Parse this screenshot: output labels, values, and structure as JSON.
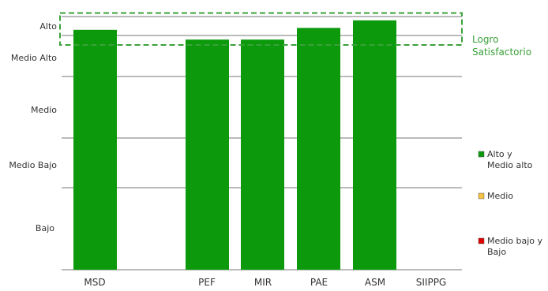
{
  "chart_data": {
    "type": "bar",
    "categories": [
      "MSD",
      "PEF",
      "MIR",
      "PAE",
      "ASM",
      "SIIPPG"
    ],
    "levels": [
      "Alto",
      "Medio  Alto",
      "Medio",
      "Medio Bajo",
      "Bajo"
    ],
    "y_scale_note": "0 = bottom baseline, 5 = top of Alto band",
    "ylim": [
      0,
      5
    ],
    "values": [
      4.3,
      3.9,
      3.9,
      4.4,
      4.8,
      0
    ],
    "bar_color": "#0c9a0c",
    "annotation": {
      "label_lines": [
        "Logro",
        "Satisfactorio"
      ],
      "range": [
        3.77,
        5.19
      ],
      "color": "#3aa13a"
    },
    "legend": [
      {
        "lines": [
          "Alto y",
          "Medio alto"
        ],
        "color": "#0c9a0c"
      },
      {
        "lines": [
          "Medio"
        ],
        "color": "#f5c242"
      },
      {
        "lines": [
          "Medio bajo y",
          "Bajo"
        ],
        "color": "#e00000"
      }
    ],
    "legend_position": "right",
    "grid": true
  }
}
